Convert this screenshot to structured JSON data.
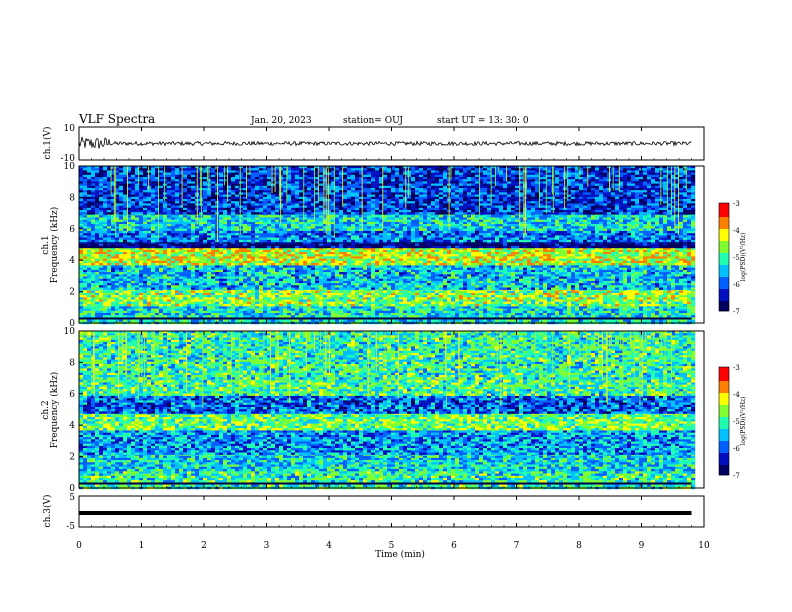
{
  "header": {
    "title": "VLF Spectra",
    "date": "Jan. 20, 2023",
    "station": "station= OUJ",
    "start": "start  UT =   13: 30: 0"
  },
  "chart_data": [
    {
      "type": "line",
      "panel": "ch1-waveform",
      "ylabel": "ch.1(V)",
      "ylim": [
        -10,
        10
      ],
      "yticks": [
        "10",
        "-10"
      ],
      "x_range_min": [
        0,
        9.8
      ],
      "trace_color": "#000000"
    },
    {
      "type": "heatmap",
      "panel": "ch1-spectrogram",
      "ylabel_top": "ch.1",
      "ylabel": "Frequency (kHz)",
      "ylim": [
        0,
        10
      ],
      "yticks": [
        "0",
        "2",
        "4",
        "6",
        "8",
        "10"
      ],
      "bands_khz": [
        {
          "from": 0,
          "to": 1.2,
          "level": -5.2
        },
        {
          "from": 1.2,
          "to": 2.2,
          "level": -4.6
        },
        {
          "from": 2.2,
          "to": 3.8,
          "level": -5.4
        },
        {
          "from": 3.8,
          "to": 4.8,
          "level": -4.3
        },
        {
          "from": 4.8,
          "to": 5.2,
          "level": -6.7
        },
        {
          "from": 5.2,
          "to": 6.0,
          "level": -5.8
        },
        {
          "from": 6.0,
          "to": 7.0,
          "level": -5.3
        },
        {
          "from": 7.0,
          "to": 10,
          "level": -6.1
        }
      ],
      "colorbar": {
        "label": "log(PSD)(V²/Hz)",
        "ticks": [
          "-3",
          "-4",
          "-5",
          "-6",
          "-7"
        ],
        "range": [
          -7,
          -3
        ]
      }
    },
    {
      "type": "heatmap",
      "panel": "ch2-spectrogram",
      "ylabel_top": "ch.2",
      "ylabel": "Frequency (kHz)",
      "ylim": [
        0,
        10
      ],
      "yticks": [
        "0",
        "2",
        "4",
        "6",
        "8",
        "10"
      ],
      "bands_khz": [
        {
          "from": 0,
          "to": 1.2,
          "level": -5.0
        },
        {
          "from": 1.2,
          "to": 2.2,
          "level": -5.3
        },
        {
          "from": 2.2,
          "to": 3.8,
          "level": -5.6
        },
        {
          "from": 3.8,
          "to": 4.8,
          "level": -4.7
        },
        {
          "from": 4.8,
          "to": 6.0,
          "level": -5.9
        },
        {
          "from": 6.0,
          "to": 7.0,
          "level": -4.9
        },
        {
          "from": 7.0,
          "to": 10,
          "level": -5.0
        }
      ],
      "colorbar": {
        "label": "log(PSD)(V²/Hz)",
        "ticks": [
          "-3",
          "-4",
          "-5",
          "-6",
          "-7"
        ],
        "range": [
          -7,
          -3
        ]
      }
    },
    {
      "type": "line",
      "panel": "ch3-waveform",
      "ylabel": "ch.3(V)",
      "ylim": [
        -5,
        5
      ],
      "yticks": [
        "5",
        "-5"
      ],
      "x_range_min": [
        0,
        9.8
      ],
      "constant_value": -0.5,
      "trace_color": "#000000"
    }
  ],
  "x_axis": {
    "label": "Time  (min)",
    "ticks": [
      "0",
      "1",
      "2",
      "3",
      "4",
      "5",
      "6",
      "7",
      "8",
      "9",
      "10"
    ],
    "range": [
      0,
      10
    ]
  },
  "colorscale": [
    "#000060",
    "#0010c0",
    "#0060ff",
    "#00c0ff",
    "#20ffb0",
    "#80ff30",
    "#ffff00",
    "#ff8000",
    "#ff0000",
    "#ffffff"
  ]
}
